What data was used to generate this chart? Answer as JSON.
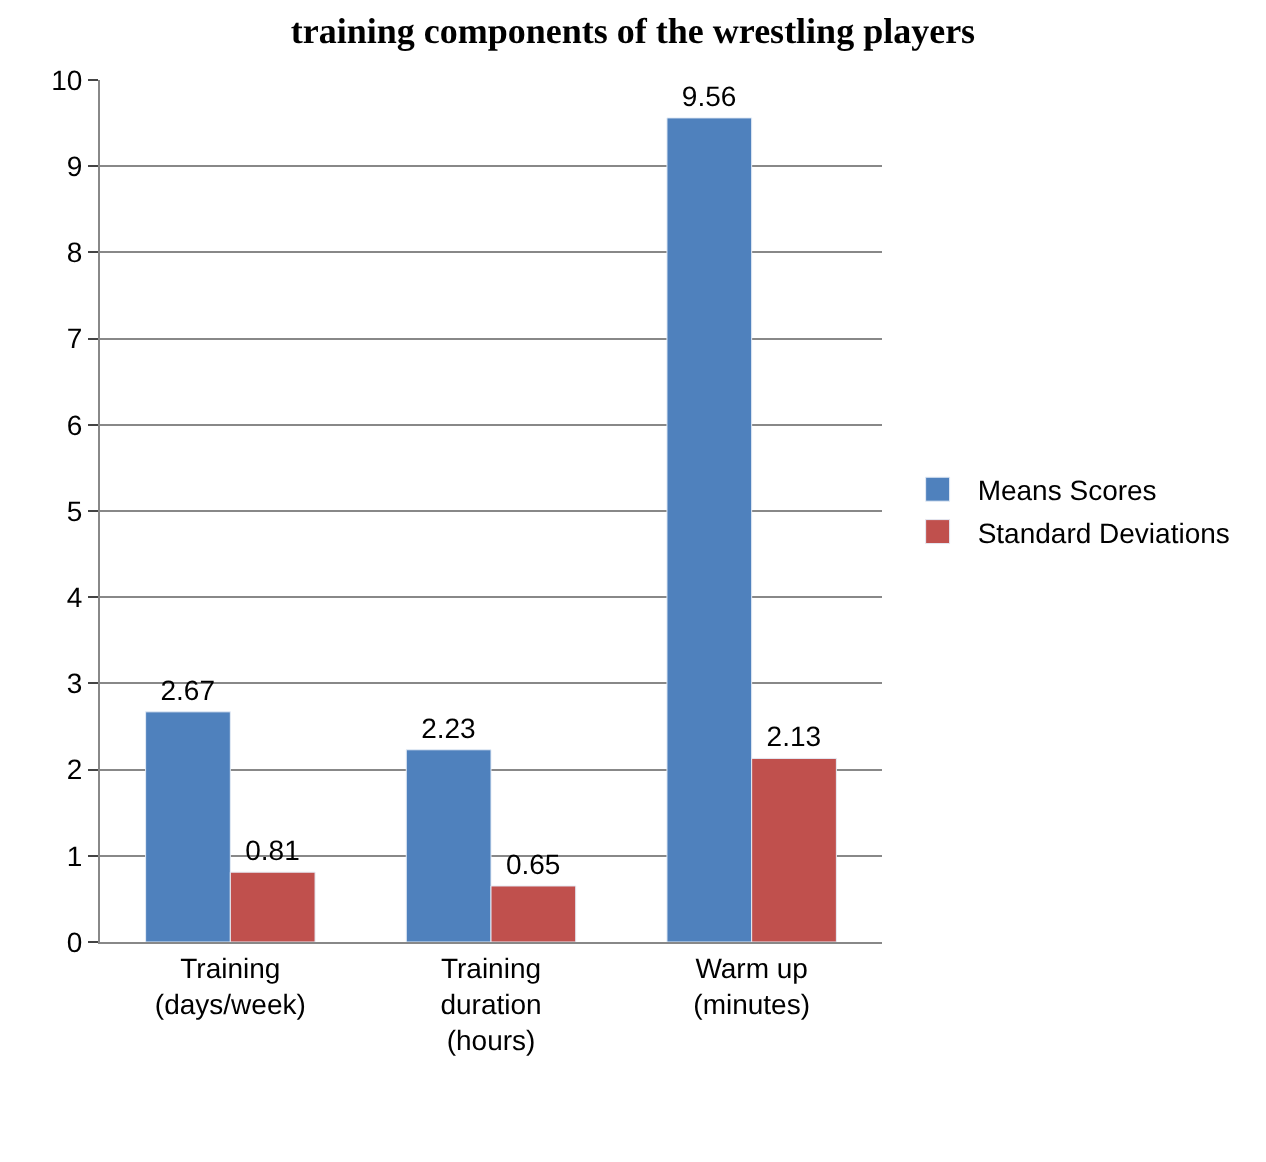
{
  "chart_data": {
    "type": "bar",
    "title": "training components of the wrestling players",
    "categories": [
      "Training (days/week)",
      "Training duration (hours)",
      "Warm up (minutes)"
    ],
    "series": [
      {
        "name": "Means Scores",
        "color": "#4f81bd",
        "values": [
          2.67,
          2.23,
          9.56
        ]
      },
      {
        "name": "Standard Deviations",
        "color": "#c0504d",
        "values": [
          0.81,
          0.65,
          2.13
        ]
      }
    ],
    "ylim": [
      0,
      10
    ],
    "yticks": [
      0,
      1,
      2,
      3,
      4,
      5,
      6,
      7,
      8,
      9,
      10
    ],
    "grid": "y",
    "legend": "right",
    "data_labels": true
  }
}
